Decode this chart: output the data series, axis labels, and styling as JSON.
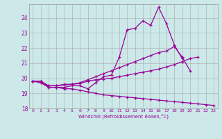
{
  "xlabel": "Windchill (Refroidissement éolien,°C)",
  "background_color": "#cce8e8",
  "line_color": "#990099",
  "xlim": [
    -0.5,
    23.5
  ],
  "ylim": [
    18,
    24.9
  ],
  "yticks": [
    18,
    19,
    20,
    21,
    22,
    23,
    24
  ],
  "xticks": [
    0,
    1,
    2,
    3,
    4,
    5,
    6,
    7,
    8,
    9,
    10,
    11,
    12,
    13,
    14,
    15,
    16,
    17,
    18,
    19,
    20,
    21,
    22,
    23
  ],
  "line1_x": [
    0,
    1,
    2,
    3,
    4,
    5,
    6,
    7,
    8,
    9,
    10,
    11,
    12,
    13,
    14,
    15,
    16,
    17,
    18,
    19,
    20,
    21,
    22,
    23
  ],
  "line1_y": [
    19.8,
    19.8,
    19.4,
    19.4,
    19.4,
    19.5,
    19.5,
    19.3,
    19.7,
    20.1,
    20.2,
    21.4,
    23.2,
    23.3,
    23.8,
    23.5,
    24.7,
    23.6,
    22.2,
    21.3,
    null,
    null,
    null,
    null
  ],
  "line2_x": [
    0,
    1,
    2,
    3,
    4,
    5,
    6,
    7,
    8,
    9,
    10,
    11,
    12,
    13,
    14,
    15,
    16,
    17,
    18,
    19,
    20,
    21,
    22,
    23
  ],
  "line2_y": [
    19.8,
    19.8,
    19.5,
    19.5,
    19.6,
    19.6,
    19.7,
    19.9,
    20.1,
    20.3,
    20.5,
    20.7,
    20.9,
    21.1,
    21.3,
    21.5,
    21.7,
    21.8,
    22.1,
    21.4,
    20.5,
    null,
    null,
    null
  ],
  "line3_x": [
    0,
    1,
    2,
    3,
    4,
    5,
    6,
    7,
    8,
    9,
    10,
    11,
    12,
    13,
    14,
    15,
    16,
    17,
    18,
    19,
    20,
    21,
    22,
    23
  ],
  "line3_y": [
    19.8,
    19.8,
    19.5,
    19.5,
    19.55,
    19.6,
    19.65,
    19.8,
    19.9,
    19.95,
    20.0,
    20.1,
    20.2,
    20.3,
    20.4,
    20.5,
    20.6,
    20.75,
    20.9,
    21.1,
    21.3,
    21.4,
    null,
    null
  ],
  "line4_x": [
    0,
    1,
    2,
    3,
    4,
    5,
    6,
    7,
    8,
    9,
    10,
    11,
    12,
    13,
    14,
    15,
    16,
    17,
    18,
    19,
    20,
    21,
    22,
    23
  ],
  "line4_y": [
    19.8,
    19.7,
    19.4,
    19.4,
    19.3,
    19.3,
    19.2,
    19.1,
    19.0,
    18.9,
    18.85,
    18.8,
    18.75,
    18.7,
    18.65,
    18.6,
    18.55,
    18.5,
    18.45,
    18.4,
    18.35,
    18.3,
    18.25,
    18.2
  ]
}
